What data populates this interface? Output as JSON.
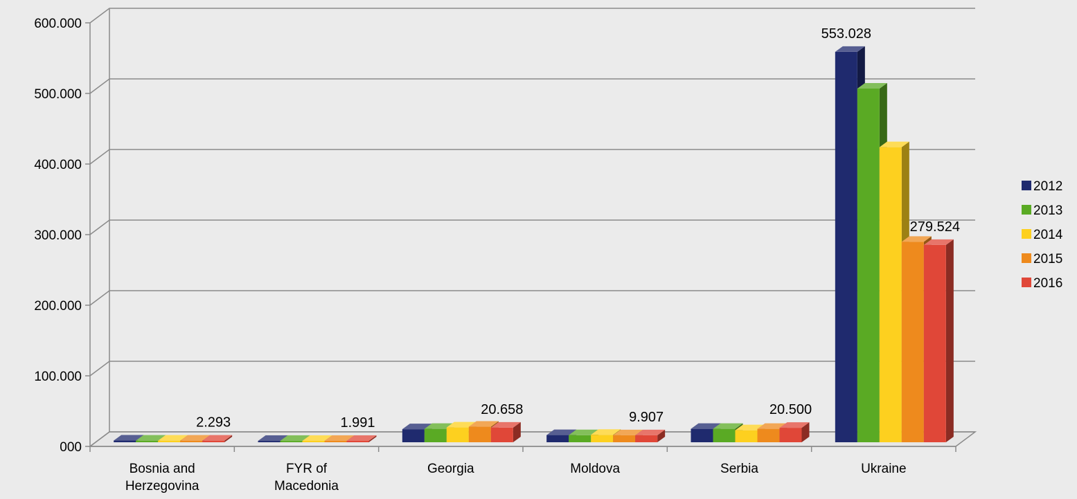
{
  "chart_data": {
    "type": "bar",
    "style": "3d-clustered-column",
    "title": "",
    "xlabel": "",
    "ylabel": "",
    "ylim": [
      0,
      600000
    ],
    "y_ticks": [
      {
        "value": 0,
        "label": "000"
      },
      {
        "value": 100000,
        "label": "100.000"
      },
      {
        "value": 200000,
        "label": "200.000"
      },
      {
        "value": 300000,
        "label": "300.000"
      },
      {
        "value": 400000,
        "label": "400.000"
      },
      {
        "value": 500000,
        "label": "500.000"
      },
      {
        "value": 600000,
        "label": "600.000"
      }
    ],
    "grid": true,
    "legend_position": "right",
    "categories": [
      {
        "lines": [
          "Bosnia and",
          "Herzegovina"
        ]
      },
      {
        "lines": [
          "FYR of",
          "Macedonia"
        ]
      },
      {
        "lines": [
          "Georgia"
        ]
      },
      {
        "lines": [
          "Moldova"
        ]
      },
      {
        "lines": [
          "Serbia"
        ]
      },
      {
        "lines": [
          "Ukraine"
        ]
      }
    ],
    "series": [
      {
        "name": "2012",
        "color": "#1f2a6e",
        "values": [
          2400,
          1900,
          18500,
          10200,
          19000,
          553028
        ]
      },
      {
        "name": "2013",
        "color": "#5aaa24",
        "values": [
          2300,
          1900,
          19000,
          10000,
          19000,
          501000
        ]
      },
      {
        "name": "2014",
        "color": "#fdd01f",
        "values": [
          2300,
          1950,
          21000,
          10500,
          17000,
          418000
        ]
      },
      {
        "name": "2015",
        "color": "#ee8a1d",
        "values": [
          2300,
          1980,
          22000,
          9900,
          19000,
          284000
        ]
      },
      {
        "name": "2016",
        "color": "#e04738",
        "values": [
          2293,
          1991,
          20658,
          9907,
          20500,
          279524
        ]
      }
    ],
    "data_labels": [
      {
        "category": 0,
        "series": 4,
        "text": "2.293"
      },
      {
        "category": 1,
        "series": 4,
        "text": "1.991"
      },
      {
        "category": 2,
        "series": 4,
        "text": "20.658"
      },
      {
        "category": 3,
        "series": 4,
        "text": "9.907"
      },
      {
        "category": 4,
        "series": 4,
        "text": "20.500"
      },
      {
        "category": 5,
        "series": 0,
        "text": "553.028"
      },
      {
        "category": 5,
        "series": 4,
        "text": "279.524"
      }
    ]
  }
}
